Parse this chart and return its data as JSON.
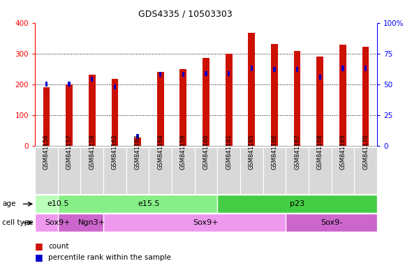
{
  "title": "GDS4335 / 10503303",
  "samples": [
    "GSM841156",
    "GSM841157",
    "GSM841158",
    "GSM841162",
    "GSM841163",
    "GSM841164",
    "GSM841159",
    "GSM841160",
    "GSM841161",
    "GSM841165",
    "GSM841166",
    "GSM841167",
    "GSM841168",
    "GSM841169",
    "GSM841170"
  ],
  "counts": [
    190,
    200,
    232,
    218,
    28,
    240,
    250,
    287,
    300,
    368,
    332,
    308,
    290,
    330,
    322
  ],
  "percentile_ranks": [
    52,
    52,
    56,
    50,
    10,
    60,
    60,
    61,
    61,
    65,
    64,
    64,
    58,
    65,
    65
  ],
  "age_groups": [
    {
      "label": "e10.5",
      "start": 0,
      "end": 1,
      "color": "#bbffbb"
    },
    {
      "label": "e15.5",
      "start": 1,
      "end": 8,
      "color": "#88ee88"
    },
    {
      "label": "p23",
      "start": 8,
      "end": 14,
      "color": "#44cc44"
    }
  ],
  "cell_type_groups": [
    {
      "label": "Sox9+",
      "start": 0,
      "end": 1,
      "color": "#ee99ee"
    },
    {
      "label": "Ngn3+",
      "start": 1,
      "end": 3,
      "color": "#cc66cc"
    },
    {
      "label": "Sox9+",
      "start": 3,
      "end": 11,
      "color": "#ee99ee"
    },
    {
      "label": "Sox9-",
      "start": 11,
      "end": 14,
      "color": "#cc66cc"
    }
  ],
  "ylim_left": [
    0,
    400
  ],
  "ylim_right": [
    0,
    100
  ],
  "bar_color": "#cc1100",
  "blue_color": "#0000cc",
  "background_color": "#ffffff",
  "plot_bg": "#ffffff",
  "label_bg": "#d8d8d8"
}
